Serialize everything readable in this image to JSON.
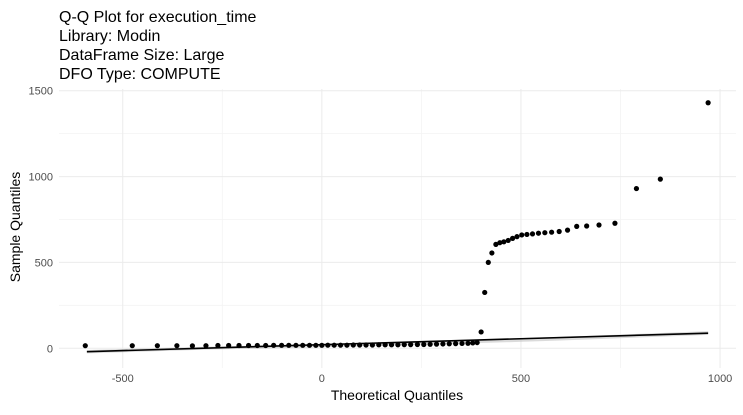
{
  "chart_data": {
    "type": "scatter",
    "title_lines": [
      "Q-Q Plot for execution_time",
      "Library: Modin",
      "DataFrame Size: Large",
      "DFO Type: COMPUTE"
    ],
    "xlabel": "Theoretical Quantiles",
    "ylabel": "Sample Quantiles",
    "xlim": [
      -660,
      1040
    ],
    "ylim": [
      -115,
      1510
    ],
    "xticks": [
      -500,
      0,
      500,
      1000
    ],
    "xtick_labels": [
      "-500",
      "0",
      "500",
      "1000"
    ],
    "yticks": [
      0,
      500,
      1000,
      1500
    ],
    "ytick_labels": [
      "0",
      "500",
      "1000",
      "1500"
    ],
    "grid": true,
    "point_color": "#000000",
    "line_color": "#000000",
    "band_color": "#bdbdbd",
    "reference_line": {
      "x": [
        -590,
        970
      ],
      "y": [
        -20,
        88
      ]
    },
    "confidence_band": {
      "x": [
        -590,
        -300,
        0,
        300,
        600,
        970
      ],
      "upper": [
        -10,
        8,
        25,
        45,
        66,
        100
      ],
      "lower": [
        -30,
        -9,
        6,
        23,
        45,
        78
      ]
    },
    "points": [
      [
        -594,
        15
      ],
      [
        -476,
        15
      ],
      [
        -413,
        15
      ],
      [
        -364,
        15
      ],
      [
        -325,
        14
      ],
      [
        -291,
        15
      ],
      [
        -261,
        16
      ],
      [
        -234,
        16
      ],
      [
        -208,
        16
      ],
      [
        -184,
        16
      ],
      [
        -162,
        16
      ],
      [
        -141,
        16
      ],
      [
        -121,
        17
      ],
      [
        -101,
        17
      ],
      [
        -83,
        17
      ],
      [
        -65,
        17
      ],
      [
        -48,
        17
      ],
      [
        -31,
        17
      ],
      [
        -15,
        17
      ],
      [
        0,
        17
      ],
      [
        15,
        18
      ],
      [
        31,
        18
      ],
      [
        47,
        18
      ],
      [
        63,
        18
      ],
      [
        79,
        19
      ],
      [
        95,
        19
      ],
      [
        111,
        19
      ],
      [
        127,
        19
      ],
      [
        143,
        20
      ],
      [
        159,
        20
      ],
      [
        175,
        20
      ],
      [
        191,
        20
      ],
      [
        207,
        21
      ],
      [
        223,
        21
      ],
      [
        240,
        22
      ],
      [
        256,
        22
      ],
      [
        272,
        23
      ],
      [
        288,
        24
      ],
      [
        304,
        25
      ],
      [
        320,
        26
      ],
      [
        336,
        27
      ],
      [
        352,
        28
      ],
      [
        367,
        29
      ],
      [
        379,
        31
      ],
      [
        390,
        33
      ],
      [
        400,
        95
      ],
      [
        409,
        325
      ],
      [
        418,
        500
      ],
      [
        427,
        555
      ],
      [
        437,
        605
      ],
      [
        447,
        615
      ],
      [
        457,
        620
      ],
      [
        468,
        628
      ],
      [
        479,
        640
      ],
      [
        490,
        650
      ],
      [
        502,
        660
      ],
      [
        515,
        663
      ],
      [
        529,
        666
      ],
      [
        544,
        670
      ],
      [
        560,
        673
      ],
      [
        577,
        676
      ],
      [
        596,
        680
      ],
      [
        617,
        688
      ],
      [
        640,
        710
      ],
      [
        665,
        712
      ],
      [
        696,
        718
      ],
      [
        736,
        728
      ],
      [
        790,
        930
      ],
      [
        850,
        985
      ],
      [
        970,
        1430
      ]
    ]
  }
}
